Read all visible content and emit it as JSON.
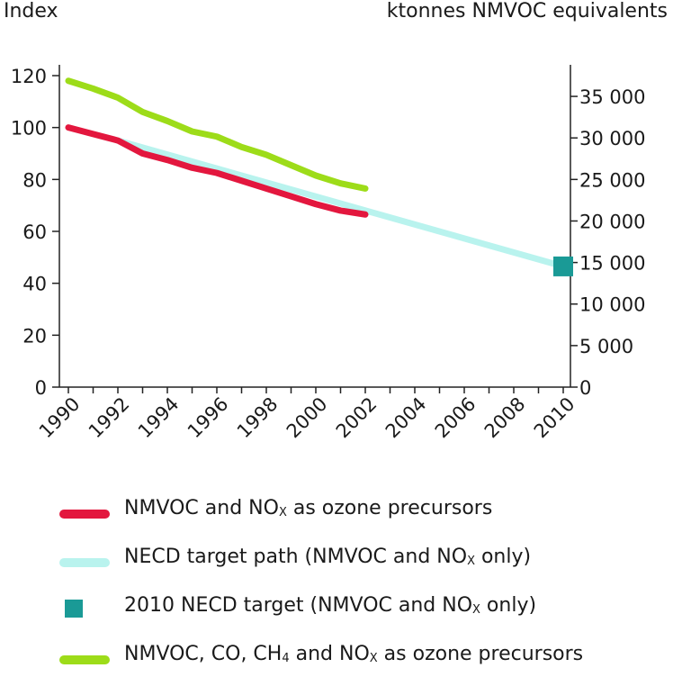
{
  "chart_data": {
    "type": "line",
    "left_axis_title": "Index",
    "right_axis_title": "ktonnes NMVOC equivalents",
    "x": [
      1990,
      1991,
      1992,
      1993,
      1994,
      1995,
      1996,
      1997,
      1998,
      1999,
      2000,
      2001,
      2002
    ],
    "x_ticks": [
      "1990",
      "1992",
      "1994",
      "1996",
      "1998",
      "2000",
      "2002",
      "2004",
      "2006",
      "2008",
      "2010"
    ],
    "xlim": [
      1990,
      2010
    ],
    "ylim_left": [
      0,
      120
    ],
    "y_ticks_left": [
      "0",
      "20",
      "40",
      "60",
      "80",
      "100",
      "120"
    ],
    "ylim_right": [
      0,
      37500
    ],
    "y_ticks_right": [
      "0",
      "5 000",
      "10 000",
      "15 000",
      "20 000",
      "25 000",
      "30 000",
      "35 000"
    ],
    "series": [
      {
        "name": "NMVOC and NO",
        "name_sub": "X",
        "name_suffix": " as ozone precursors",
        "color": "#e3173e",
        "x": [
          1990,
          1991,
          1992,
          1993,
          1994,
          1995,
          1996,
          1997,
          1998,
          1999,
          2000,
          2001,
          2002
        ],
        "values": [
          100,
          97.5,
          95,
          90,
          87.5,
          84.5,
          82.5,
          79.5,
          76.5,
          73.5,
          70.5,
          68,
          66.5
        ]
      },
      {
        "name": "NECD target path (NMVOC and NO",
        "name_sub": "X",
        "name_suffix": " only)",
        "color": "#b9f3ee",
        "x": [
          1992,
          2010
        ],
        "values": [
          95,
          46.5
        ]
      },
      {
        "name": "2010 NECD target (NMVOC and NO",
        "name_sub": "X",
        "name_suffix": " only)",
        "color": "#1a9a96",
        "marker": "square",
        "x": [
          2010
        ],
        "values": [
          46.5
        ]
      },
      {
        "name": "NMVOC, CO, CH",
        "name_sub": "4",
        "name_mid": " and NO",
        "name_sub2": "X",
        "name_suffix": " as ozone precursors",
        "color": "#9ddc19",
        "x": [
          1990,
          1991,
          1992,
          1993,
          1994,
          1995,
          1996,
          1997,
          1998,
          1999,
          2000,
          2001,
          2002
        ],
        "values": [
          118,
          115,
          111.5,
          106,
          102.5,
          98.5,
          96.5,
          92.5,
          89.5,
          85.5,
          81.5,
          78.5,
          76.5
        ]
      }
    ]
  }
}
